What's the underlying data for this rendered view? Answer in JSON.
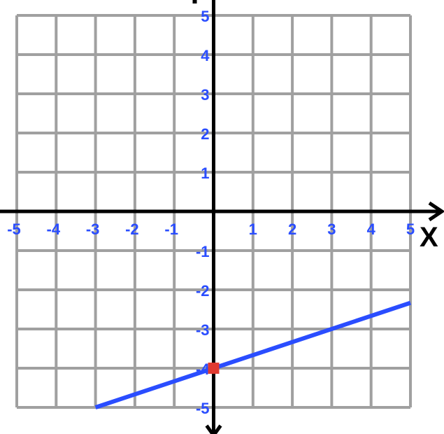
{
  "chart_data": {
    "type": "line",
    "title": "",
    "xlabel": "X",
    "ylabel": "",
    "xlim": [
      -5,
      5
    ],
    "ylim": [
      -5,
      5
    ],
    "grid": true,
    "x_ticks": [
      "-5",
      "-4",
      "-3",
      "-2",
      "-1",
      "1",
      "2",
      "3",
      "4",
      "5"
    ],
    "y_ticks": [
      "5",
      "4",
      "3",
      "2",
      "1",
      "-1",
      "-2",
      "-3",
      "-4",
      "-5"
    ],
    "series": [
      {
        "x": [
          -3,
          5
        ],
        "y": [
          -5,
          -2.333
        ],
        "color": "#2a4dff"
      }
    ],
    "points": [
      {
        "x": 0,
        "y": -4,
        "color": "#e03a30"
      }
    ],
    "colors": {
      "grid": "#a0a0a0",
      "axes": "#000000",
      "tick_labels": "#2a4dff"
    }
  }
}
